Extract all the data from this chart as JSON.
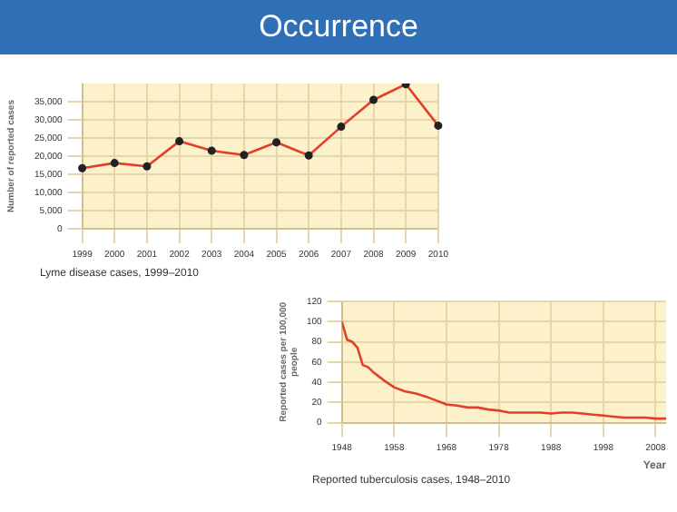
{
  "chart_data": [
    {
      "type": "line",
      "title": "Occurrence",
      "ylabel": "Number of reported cases",
      "categories": [
        "1999",
        "2000",
        "2001",
        "2002",
        "2003",
        "2004",
        "2005",
        "2006",
        "2007",
        "2008",
        "2009",
        "2010"
      ],
      "series": [
        {
          "color": "#e0402a",
          "values": [
            16700,
            18100,
            17200,
            24100,
            21500,
            20300,
            23800,
            20200,
            28100,
            35500,
            39800,
            28400
          ]
        }
      ],
      "ylim": [
        0,
        40000
      ],
      "yticks": [
        {
          "value": 0,
          "label": "0"
        },
        {
          "value": 5000,
          "label": "5,000"
        },
        {
          "value": 10000,
          "label": "10,000"
        },
        {
          "value": 15000,
          "label": "15,000"
        },
        {
          "value": 20000,
          "label": "20,000"
        },
        {
          "value": 25000,
          "label": "25,000"
        },
        {
          "value": 30000,
          "label": "30,000"
        },
        {
          "value": 35000,
          "label": "35,000"
        }
      ],
      "grid": true,
      "marker": "circle",
      "annotations": [
        "Lyme disease cases, 1999–2010"
      ]
    },
    {
      "type": "line",
      "xlabel": "Year",
      "ylabel": "Reported cases per 100,000 people",
      "series": [
        {
          "color": "#e0402a",
          "x": [
            1948,
            1949,
            1950,
            1951,
            1952,
            1953,
            1954,
            1955,
            1956,
            1958,
            1960,
            1962,
            1964,
            1966,
            1968,
            1970,
            1972,
            1974,
            1976,
            1978,
            1980,
            1982,
            1984,
            1986,
            1988,
            1990,
            1992,
            1994,
            1996,
            1998,
            2000,
            2002,
            2004,
            2006,
            2008,
            2010
          ],
          "values": [
            100,
            82,
            80,
            74,
            57,
            55,
            50,
            46,
            42,
            35,
            31,
            29,
            26,
            22,
            18,
            17,
            15,
            15,
            13,
            12,
            10,
            10,
            10,
            10,
            9,
            10,
            10,
            9,
            8,
            7,
            6,
            5,
            5,
            5,
            4,
            4
          ]
        }
      ],
      "xlim": [
        1948,
        2010
      ],
      "xticks": [
        1948,
        1958,
        1968,
        1978,
        1988,
        1998,
        2008
      ],
      "ylim": [
        0,
        120
      ],
      "yticks": [
        0,
        20,
        40,
        60,
        80,
        100,
        120
      ],
      "grid": true,
      "annotations": [
        "Reported tuberculosis cases, 1948–2010"
      ]
    }
  ]
}
